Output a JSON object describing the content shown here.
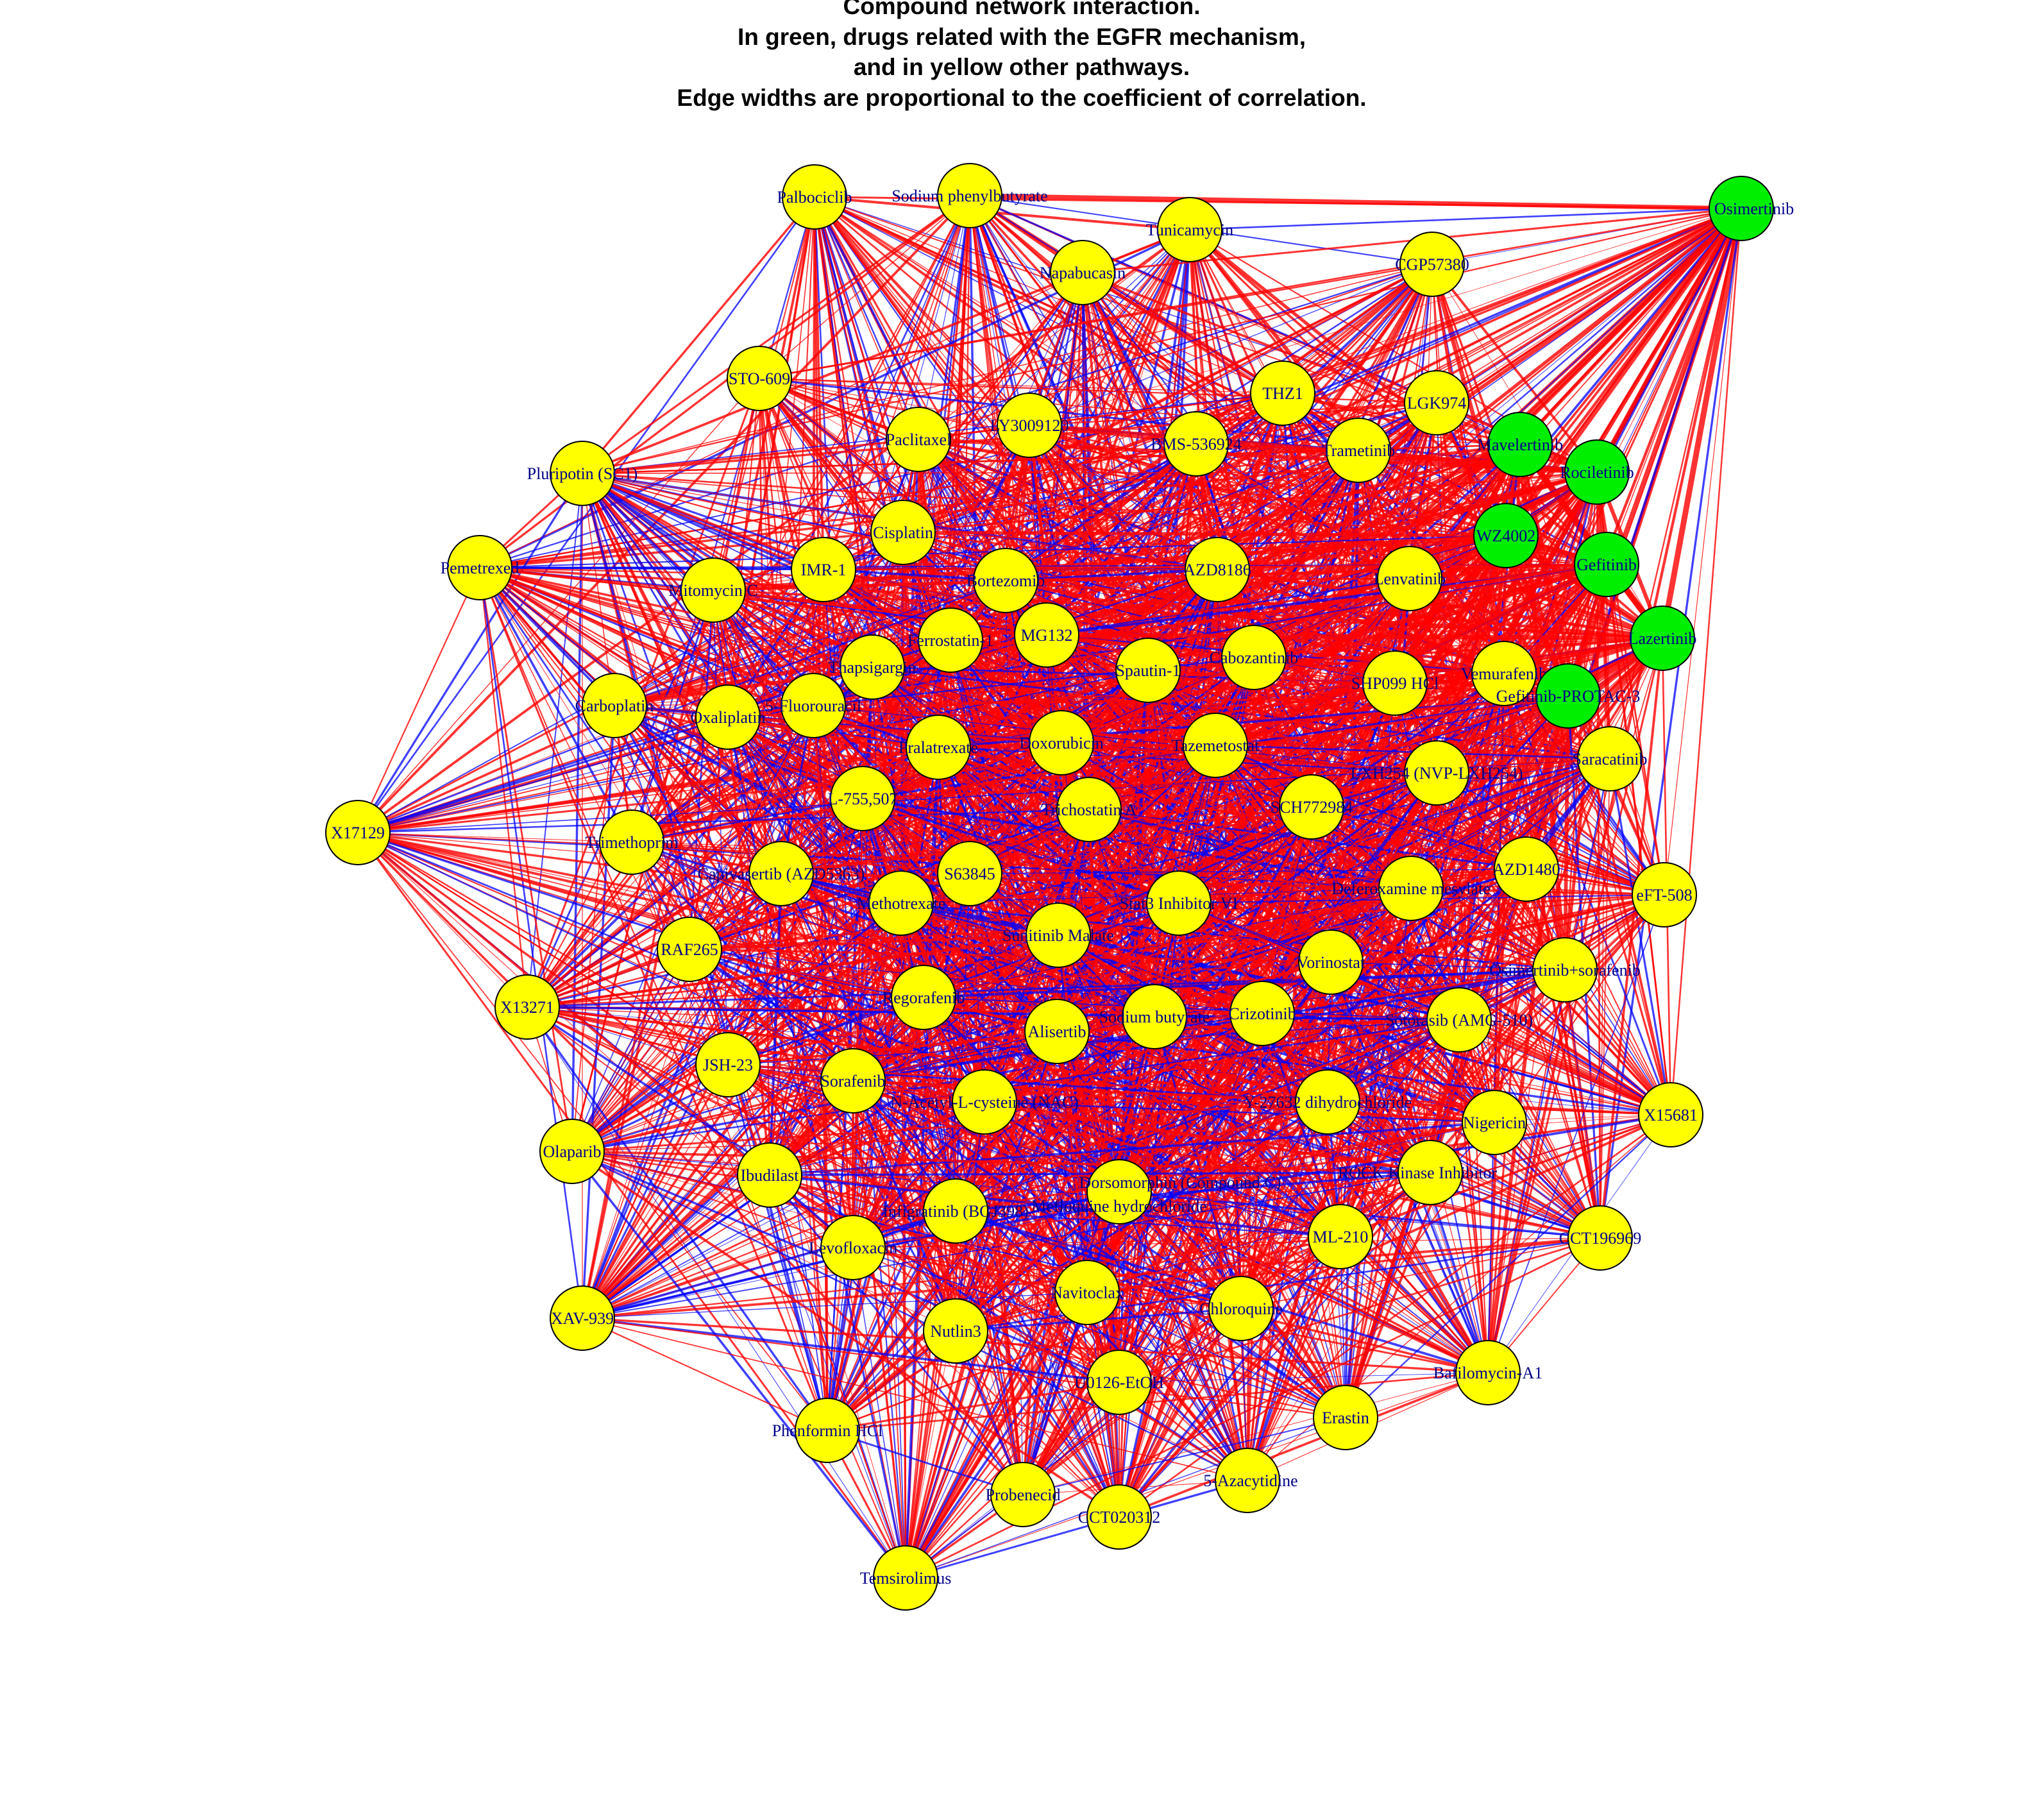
{
  "title": [
    "Compound network interaction.",
    "In green, drugs related with the EGFR mechanism,",
    "and in yellow other pathways.",
    "Edge widths are proportional to the coefficient of correlation."
  ],
  "colors": {
    "egfr_node": "#00ee00",
    "other_node": "#ffff00",
    "positive_edge": "#ff0000",
    "negative_edge": "#0000ff",
    "label": "#00008b"
  },
  "nodes": [
    {
      "id": "Palbociclib",
      "label": "Palbociclib",
      "group": "other"
    },
    {
      "id": "Sodium phenylbutyrate",
      "label": "Sodium phenylbutyrate",
      "group": "other"
    },
    {
      "id": "Tunicamycin",
      "label": "Tunicamycin",
      "group": "other"
    },
    {
      "id": "Napabucasin",
      "label": "Napabucasin",
      "group": "other"
    },
    {
      "id": "CGP57380",
      "label": "CGP57380",
      "group": "other"
    },
    {
      "id": "Osimertinib",
      "label": "Osimertinib",
      "group": "egfr"
    },
    {
      "id": "STO-609",
      "label": "STO-609",
      "group": "other"
    },
    {
      "id": "THZ1",
      "label": "THZ1",
      "group": "other"
    },
    {
      "id": "LGK974",
      "label": "LGK974",
      "group": "other"
    },
    {
      "id": "Paclitaxel",
      "label": "Paclitaxel",
      "group": "other"
    },
    {
      "id": "LY3009120",
      "label": "LY3009120",
      "group": "other"
    },
    {
      "id": "BMS-536924",
      "label": "BMS-536924",
      "group": "other"
    },
    {
      "id": "Trametinib",
      "label": "Trametinib",
      "group": "other"
    },
    {
      "id": "Mavelertinib",
      "label": "Mavelertinib",
      "group": "egfr"
    },
    {
      "id": "Rociletinib",
      "label": "Rociletinib",
      "group": "egfr"
    },
    {
      "id": "Pluripotin (SC1)",
      "label": "Pluripotin (SC1)",
      "group": "other"
    },
    {
      "id": "Cisplatin",
      "label": "Cisplatin",
      "group": "other"
    },
    {
      "id": "WZ4002",
      "label": "WZ4002",
      "group": "egfr"
    },
    {
      "id": "Pemetrexed",
      "label": "Pemetrexed",
      "group": "other"
    },
    {
      "id": "IMR-1",
      "label": "IMR-1",
      "group": "other"
    },
    {
      "id": "Mitomycin C",
      "label": "Mitomycin C",
      "group": "other"
    },
    {
      "id": "Bortezomib",
      "label": "Bortezomib",
      "group": "other"
    },
    {
      "id": "AZD8186",
      "label": "AZD8186",
      "group": "other"
    },
    {
      "id": "Lenvatinib",
      "label": "Lenvatinib",
      "group": "other"
    },
    {
      "id": "Gefitinib",
      "label": "Gefitinib",
      "group": "egfr"
    },
    {
      "id": "MG132",
      "label": "MG132",
      "group": "other"
    },
    {
      "id": "Ferrostatin-1",
      "label": "Ferrostatin-1",
      "group": "other"
    },
    {
      "id": "Lazertinib",
      "label": "Lazertinib",
      "group": "egfr"
    },
    {
      "id": "Thapsigargin",
      "label": "Thapsigargin",
      "group": "other"
    },
    {
      "id": "Spautin-1",
      "label": "Spautin-1",
      "group": "other"
    },
    {
      "id": "Cabozantinib",
      "label": "Cabozantinib",
      "group": "other"
    },
    {
      "id": "SHP099 HCl",
      "label": "SHP099 HCl",
      "group": "other"
    },
    {
      "id": "Vemurafenib",
      "label": "Vemurafenib",
      "group": "other"
    },
    {
      "id": "Gefitinib-PROTAC-3",
      "label": "Gefitinib-PROTAC-3",
      "group": "egfr"
    },
    {
      "id": "Carboplatin",
      "label": "Carboplatin",
      "group": "other"
    },
    {
      "id": "Oxaliplatin",
      "label": "Oxaliplatin",
      "group": "other"
    },
    {
      "id": "5-Fluorouracil",
      "label": "5-Fluorouracil",
      "group": "other"
    },
    {
      "id": "Pralatrexate",
      "label": "Pralatrexate",
      "group": "other"
    },
    {
      "id": "Doxorubicin",
      "label": "Doxorubicin",
      "group": "other"
    },
    {
      "id": "Tazemetostat",
      "label": "Tazemetostat",
      "group": "other"
    },
    {
      "id": "Saracatinib",
      "label": "Saracatinib",
      "group": "other"
    },
    {
      "id": "X17129",
      "label": "X17129",
      "group": "other"
    },
    {
      "id": "L-755,507",
      "label": "L-755,507",
      "group": "other"
    },
    {
      "id": "Trichostatin A",
      "label": "Trichostatin A",
      "group": "other"
    },
    {
      "id": "SCH772984",
      "label": "SCH772984",
      "group": "other"
    },
    {
      "id": "LXH254 (NVP-LXH254)",
      "label": "LXH254 (NVP-LXH254)",
      "group": "other"
    },
    {
      "id": "Trimethoprim",
      "label": "Trimethoprim",
      "group": "other"
    },
    {
      "id": "Capivasertib (AZD5363)",
      "label": "Capivasertib (AZD5363)",
      "group": "other"
    },
    {
      "id": "S63845",
      "label": "S63845",
      "group": "other"
    },
    {
      "id": "AZD1480",
      "label": "AZD1480",
      "group": "other"
    },
    {
      "id": "Methotrexate",
      "label": "Methotrexate",
      "group": "other"
    },
    {
      "id": "Deferoxamine mesylate",
      "label": "Deferoxamine mesylate",
      "group": "other"
    },
    {
      "id": "eFT-508",
      "label": "eFT-508",
      "group": "other"
    },
    {
      "id": "Stat3 Inhibitor VI",
      "label": "Stat3 Inhibitor VI",
      "group": "other"
    },
    {
      "id": "RAF265",
      "label": "RAF265",
      "group": "other"
    },
    {
      "id": "Sunitinib Malate",
      "label": "Sunitinib Malate",
      "group": "other"
    },
    {
      "id": "X13271",
      "label": "X13271",
      "group": "other"
    },
    {
      "id": "Vorinostat",
      "label": "Vorinostat",
      "group": "other"
    },
    {
      "id": "Osimertinib+sorafenib",
      "label": "Osimertinib+sorafenib",
      "group": "other"
    },
    {
      "id": "Regorafenib",
      "label": "Regorafenib",
      "group": "other"
    },
    {
      "id": "Alisertib",
      "label": "Alisertib",
      "group": "other"
    },
    {
      "id": "Sodium butyrate",
      "label": "Sodium butyrate",
      "group": "other"
    },
    {
      "id": "Crizotinib",
      "label": "Crizotinib",
      "group": "other"
    },
    {
      "id": "Sotorasib (AMG-510)",
      "label": "Sotorasib (AMG-510)",
      "group": "other"
    },
    {
      "id": "JSH-23",
      "label": "JSH-23",
      "group": "other"
    },
    {
      "id": "Sorafenib",
      "label": "Sorafenib",
      "group": "other"
    },
    {
      "id": "N-Acetyl-L-cysteine (NAC)",
      "label": "N-Acetyl-L-cysteine (NAC)",
      "group": "other"
    },
    {
      "id": "Y-27632 dihydrochloride",
      "label": "Y-27632 dihydrochloride",
      "group": "other"
    },
    {
      "id": "Nigericin",
      "label": "Nigericin",
      "group": "other"
    },
    {
      "id": "X15681",
      "label": "X15681",
      "group": "other"
    },
    {
      "id": "Olaparib",
      "label": "Olaparib",
      "group": "other"
    },
    {
      "id": "Ibudilast",
      "label": "Ibudilast",
      "group": "other"
    },
    {
      "id": "Dorsomorphin (Compound C)",
      "label": "Dorsomorphin (Compound C)",
      "group": "other"
    },
    {
      "id": "Mefloquine hydrochloride",
      "label": "Mefloquine hydrochloride",
      "group": "other"
    },
    {
      "id": "ROCK Kinase Inhibitor",
      "label": "ROCK Kinase Inhibitor",
      "group": "other"
    },
    {
      "id": "Infigratinib (BGJ398)",
      "label": "Infigratinib (BGJ398)",
      "group": "other"
    },
    {
      "id": "Levofloxacin",
      "label": "Levofloxacin",
      "group": "other"
    },
    {
      "id": "ML-210",
      "label": "ML-210",
      "group": "other"
    },
    {
      "id": "CCT196969",
      "label": "CCT196969",
      "group": "other"
    },
    {
      "id": "XAV-939",
      "label": "XAV-939",
      "group": "other"
    },
    {
      "id": "Navitoclax",
      "label": "Navitoclax",
      "group": "other"
    },
    {
      "id": "Chloroquine",
      "label": "Chloroquine",
      "group": "other"
    },
    {
      "id": "Nutlin3",
      "label": "Nutlin3",
      "group": "other"
    },
    {
      "id": "Bafilomycin-A1",
      "label": "Bafilomycin-A1",
      "group": "other"
    },
    {
      "id": "U0126-EtOH",
      "label": "U0126-EtOH",
      "group": "other"
    },
    {
      "id": "Erastin",
      "label": "Erastin",
      "group": "other"
    },
    {
      "id": "Phenformin HCl",
      "label": "Phenformin HCl",
      "group": "other"
    },
    {
      "id": "5-Azacytidine",
      "label": "5-Azacytidine",
      "group": "other"
    },
    {
      "id": "Probenecid",
      "label": "Probenecid",
      "group": "other"
    },
    {
      "id": "CCT020312",
      "label": "CCT020312",
      "group": "other"
    },
    {
      "id": "Temsirolimus",
      "label": "Temsirolimus",
      "group": "other"
    }
  ]
}
